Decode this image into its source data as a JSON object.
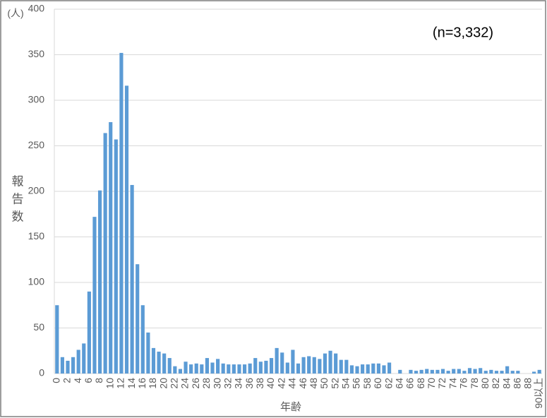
{
  "chart_data": {
    "type": "bar",
    "unit_label": "(人)",
    "y_label": "報告数",
    "x_label": "年齢",
    "annotation": "(n=3,332)",
    "categories": [
      "0",
      null,
      "2",
      null,
      "4",
      null,
      "6",
      null,
      "8",
      null,
      "10",
      null,
      "12",
      null,
      "14",
      null,
      "16",
      null,
      "18",
      null,
      "20",
      null,
      "22",
      null,
      "24",
      null,
      "26",
      null,
      "28",
      null,
      "30",
      null,
      "32",
      null,
      "34",
      null,
      "36",
      null,
      "38",
      null,
      "40",
      null,
      "42",
      null,
      "44",
      null,
      "46",
      null,
      "48",
      null,
      "50",
      null,
      "52",
      null,
      "54",
      null,
      "56",
      null,
      "58",
      null,
      "60",
      null,
      "62",
      null,
      "64",
      null,
      "66",
      null,
      "68",
      null,
      "70",
      null,
      "72",
      null,
      "74",
      null,
      "76",
      null,
      "78",
      null,
      "80",
      null,
      "82",
      null,
      "84",
      null,
      "86",
      null,
      "88",
      null,
      "90以上"
    ],
    "values": [
      75,
      18,
      14,
      18,
      26,
      33,
      90,
      172,
      201,
      264,
      276,
      257,
      352,
      316,
      207,
      120,
      75,
      45,
      28,
      24,
      22,
      17,
      8,
      5,
      13,
      10,
      11,
      10,
      17,
      12,
      16,
      11,
      10,
      10,
      10,
      10,
      11,
      17,
      13,
      14,
      17,
      28,
      23,
      12,
      26,
      11,
      18,
      19,
      18,
      16,
      22,
      25,
      22,
      15,
      15,
      9,
      8,
      10,
      10,
      11,
      11,
      9,
      12,
      0,
      4,
      0,
      4,
      3,
      4,
      5,
      4,
      4,
      5,
      3,
      5,
      5,
      3,
      6,
      5,
      6,
      3,
      4,
      3,
      3,
      8,
      3,
      3,
      0,
      0,
      2,
      4
    ],
    "color": "#5b9bd5",
    "ylim": [
      0,
      400
    ],
    "yticks": [
      0,
      50,
      100,
      150,
      200,
      250,
      300,
      350,
      400
    ],
    "grid": true
  }
}
